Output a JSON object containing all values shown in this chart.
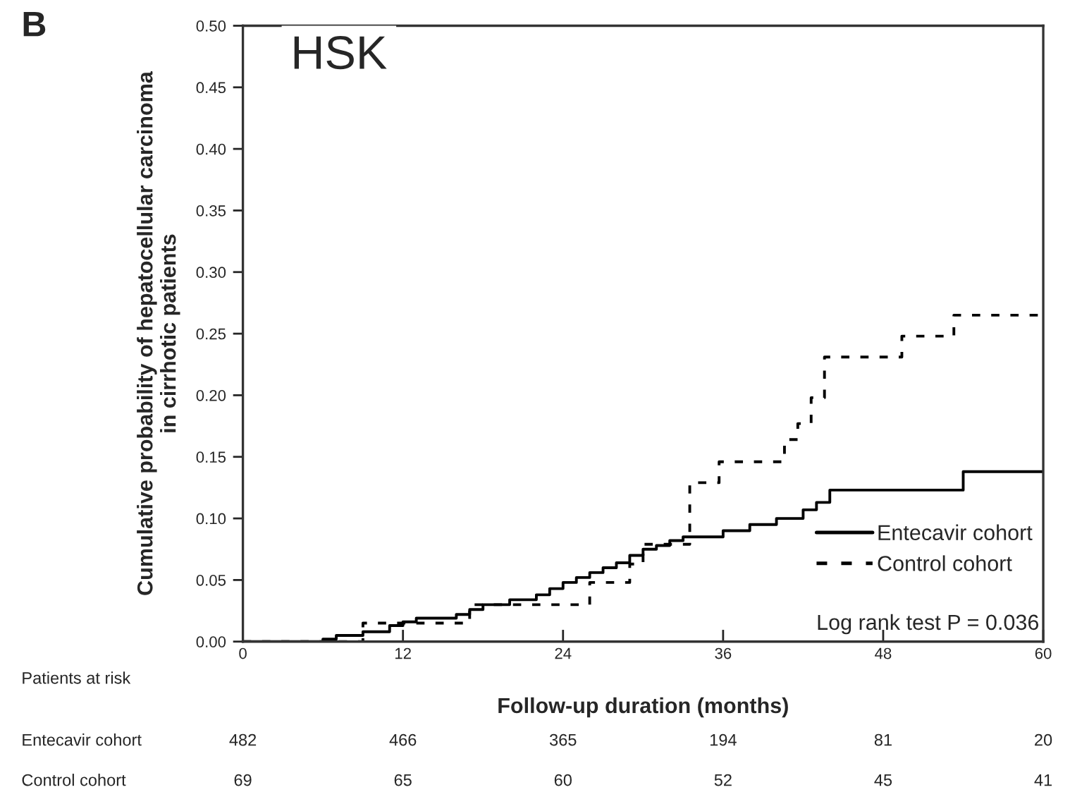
{
  "chart_data": {
    "type": "step",
    "title": "HSK",
    "xlabel": "Follow-up duration (months)",
    "ylabel": "Cumulative probability of hepatocellular carcinoma\nin cirrhotic patients",
    "xlim": [
      0,
      60
    ],
    "xticks": [
      0,
      12,
      24,
      36,
      48,
      60
    ],
    "ylim": [
      0,
      0.5
    ],
    "yticks": [
      {
        "value": 0,
        "label": "0.00"
      },
      {
        "value": 0.05,
        "label": "0.05"
      },
      {
        "value": 0.1,
        "label": "0.10"
      },
      {
        "value": 0.15,
        "label": "0.15"
      },
      {
        "value": 0.2,
        "label": "0.20"
      },
      {
        "value": 0.25,
        "label": "0.25"
      },
      {
        "value": 0.3,
        "label": "0.30"
      },
      {
        "value": 0.35,
        "label": "0.35"
      },
      {
        "value": 0.4,
        "label": "0.40"
      },
      {
        "value": 0.45,
        "label": "0.45"
      },
      {
        "value": 0.5,
        "label": "0.50"
      }
    ],
    "grid": false,
    "legend": "bottom right",
    "series": [
      {
        "name": "Entecavir cohort",
        "color": "#000000",
        "line_style": "solid",
        "x": [
          0,
          6,
          7,
          9,
          11,
          12,
          13,
          16,
          17,
          18,
          20,
          22,
          23,
          24,
          25,
          26,
          27,
          28,
          29,
          30,
          31,
          32,
          33,
          36,
          38,
          40,
          42,
          43,
          44,
          54,
          60
        ],
        "values": [
          0,
          0.002,
          0.005,
          0.008,
          0.013,
          0.016,
          0.019,
          0.022,
          0.026,
          0.03,
          0.034,
          0.038,
          0.043,
          0.048,
          0.052,
          0.056,
          0.06,
          0.064,
          0.07,
          0.075,
          0.078,
          0.082,
          0.085,
          0.09,
          0.095,
          0.1,
          0.107,
          0.113,
          0.123,
          0.138,
          0.138
        ]
      },
      {
        "name": "Control cohort",
        "color": "#000000",
        "line_style": "dashed",
        "x": [
          0,
          9,
          17,
          26,
          29,
          30,
          33.5,
          35.7,
          40.6,
          41.6,
          42.6,
          43.6,
          49.4,
          53.3,
          60
        ],
        "values": [
          0,
          0.015,
          0.03,
          0.048,
          0.063,
          0.079,
          0.129,
          0.146,
          0.164,
          0.177,
          0.198,
          0.231,
          0.248,
          0.265,
          0.265
        ]
      }
    ],
    "annotations": [
      "B",
      "Log rank test P = 0.036",
      "Patients at risk",
      "Entecavir cohort",
      "482",
      "466",
      "365",
      "194",
      "81",
      "20",
      "Control cohort",
      "69",
      "65",
      "60",
      "52",
      "45",
      "41"
    ]
  }
}
